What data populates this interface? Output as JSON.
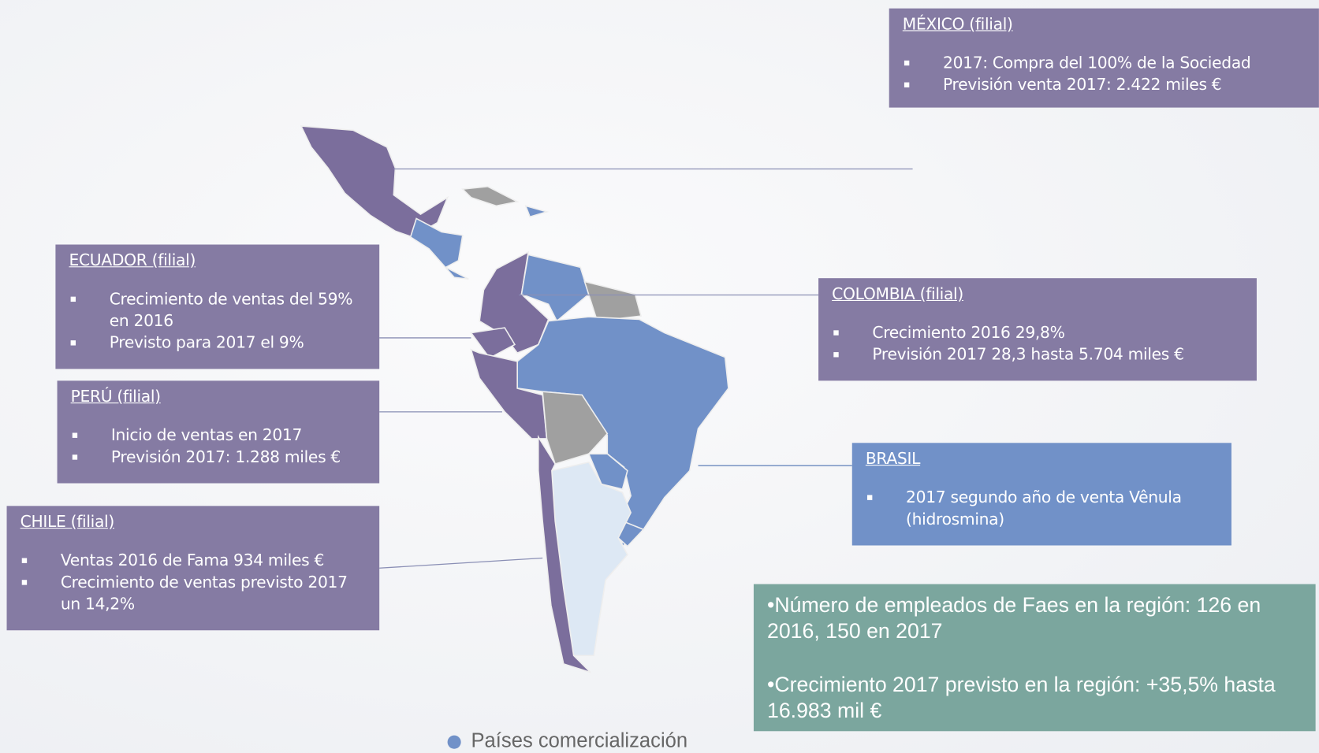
{
  "boxes": [
    {
      "title": "MÉXICO (filial)",
      "items": [
        "2017: Compra del 100% de la Sociedad",
        "Previsión venta 2017: 2.422 miles €"
      ]
    },
    {
      "title": "ECUADOR (filial)",
      "items": [
        "Crecimiento de ventas del 59% en 2016",
        "Previsto para 2017 el 9%"
      ]
    },
    {
      "title": "PERÚ (filial)",
      "items": [
        "Inicio de ventas en 2017",
        "Previsión 2017: 1.288 miles €"
      ]
    },
    {
      "title": "CHILE (filial)",
      "items": [
        "Ventas 2016 de Fama 934 miles €",
        "Crecimiento de ventas previsto 2017 un 14,2%"
      ]
    },
    {
      "title": "COLOMBIA (filial)",
      "items": [
        "Crecimiento 2016  29,8%",
        "Previsión 2017  28,3 hasta 5.704 miles €"
      ]
    },
    {
      "title": "BRASIL",
      "items": [
        "2017 segundo año de venta Vênula (hidrosmina)"
      ]
    }
  ],
  "summary": [
    "•Número de empleados de Faes en la región: 126 en 2016, 150 en 2017",
    "•Crecimiento 2017 previsto en la región: +35,5% hasta 16.983 mil €"
  ],
  "legend": "Países comercialización"
}
